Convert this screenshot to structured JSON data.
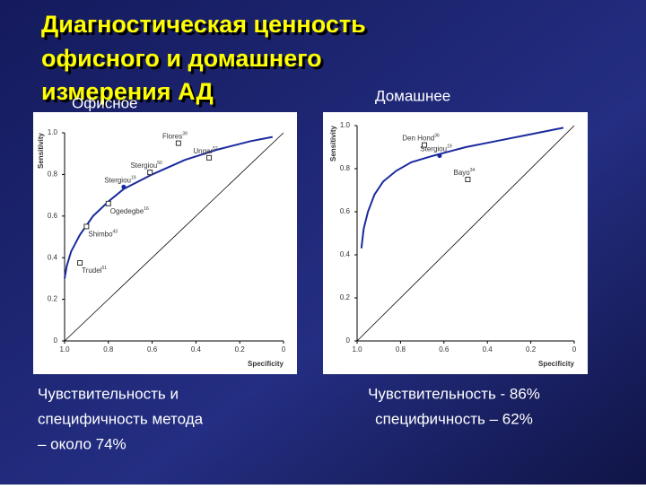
{
  "slide": {
    "title_lines": [
      "Диагностическая ценность",
      "офисного и домашнего",
      "измерения АД"
    ],
    "captions": [
      [
        "Чувствительность и",
        "специфичность метода",
        "– около 74%"
      ],
      [
        "Чувствительность  - 86%",
        "специфичность  –  62%"
      ]
    ]
  },
  "chart_data": [
    {
      "type": "line",
      "title": "Офисное",
      "xlabel": "Specificity",
      "ylabel": "Sensitivity",
      "xlim": [
        1,
        0
      ],
      "ylim": [
        0,
        1
      ],
      "xticks": [
        {
          "value": 1,
          "label": "1.0"
        },
        0.8,
        0.6,
        0.4,
        0.2,
        0
      ],
      "yticks": [
        0,
        0.2,
        0.4,
        0.6,
        0.8,
        {
          "value": 1,
          "label": "1.0"
        }
      ],
      "curve": {
        "color": "#1a2a9e",
        "x": [
          1.0,
          0.99,
          0.97,
          0.93,
          0.87,
          0.8,
          0.73,
          0.6,
          0.45,
          0.3,
          0.15,
          0.05
        ],
        "y": [
          0.3,
          0.36,
          0.43,
          0.51,
          0.6,
          0.67,
          0.73,
          0.8,
          0.87,
          0.92,
          0.96,
          0.98
        ]
      },
      "points": [
        {
          "label": "Trudel",
          "ref": "51",
          "x": 0.93,
          "y": 0.375,
          "marker": "square"
        },
        {
          "label": "Shimbo",
          "ref": "43",
          "x": 0.9,
          "y": 0.55,
          "marker": "square"
        },
        {
          "label": "Ogedegbe",
          "ref": "16",
          "x": 0.8,
          "y": 0.66,
          "marker": "square"
        },
        {
          "label": "Stergiou",
          "ref": "19",
          "x": 0.73,
          "y": 0.74,
          "marker": "dot"
        },
        {
          "label": "Stergiou",
          "ref": "50",
          "x": 0.61,
          "y": 0.81,
          "marker": "square"
        },
        {
          "label": "Flores",
          "ref": "39",
          "x": 0.48,
          "y": 0.95,
          "marker": "square"
        },
        {
          "label": "Ungar",
          "ref": "52",
          "x": 0.34,
          "y": 0.88,
          "marker": "square"
        }
      ]
    },
    {
      "type": "line",
      "title": "Домашнее",
      "xlabel": "Specificity",
      "ylabel": "Sensitivity",
      "xlim": [
        1,
        0
      ],
      "ylim": [
        0,
        1
      ],
      "xticks": [
        {
          "value": 1,
          "label": "1.0"
        },
        0.8,
        0.6,
        0.4,
        0.2,
        0
      ],
      "yticks": [
        0,
        0.2,
        0.4,
        0.6,
        0.8,
        {
          "value": 1,
          "label": "1.0"
        }
      ],
      "curve": {
        "color": "#1a2a9e",
        "x": [
          0.98,
          0.97,
          0.95,
          0.92,
          0.88,
          0.82,
          0.75,
          0.65,
          0.5,
          0.35,
          0.2,
          0.05
        ],
        "y": [
          0.43,
          0.52,
          0.6,
          0.68,
          0.74,
          0.79,
          0.83,
          0.86,
          0.9,
          0.93,
          0.96,
          0.99
        ]
      },
      "points": [
        {
          "label": "Stergiou",
          "ref": "19",
          "x": 0.62,
          "y": 0.86,
          "marker": "dot"
        },
        {
          "label": "Den Hond",
          "ref": "36",
          "x": 0.69,
          "y": 0.91,
          "marker": "square"
        },
        {
          "label": "Bayo",
          "ref": "34",
          "x": 0.49,
          "y": 0.75,
          "marker": "square"
        }
      ]
    }
  ]
}
